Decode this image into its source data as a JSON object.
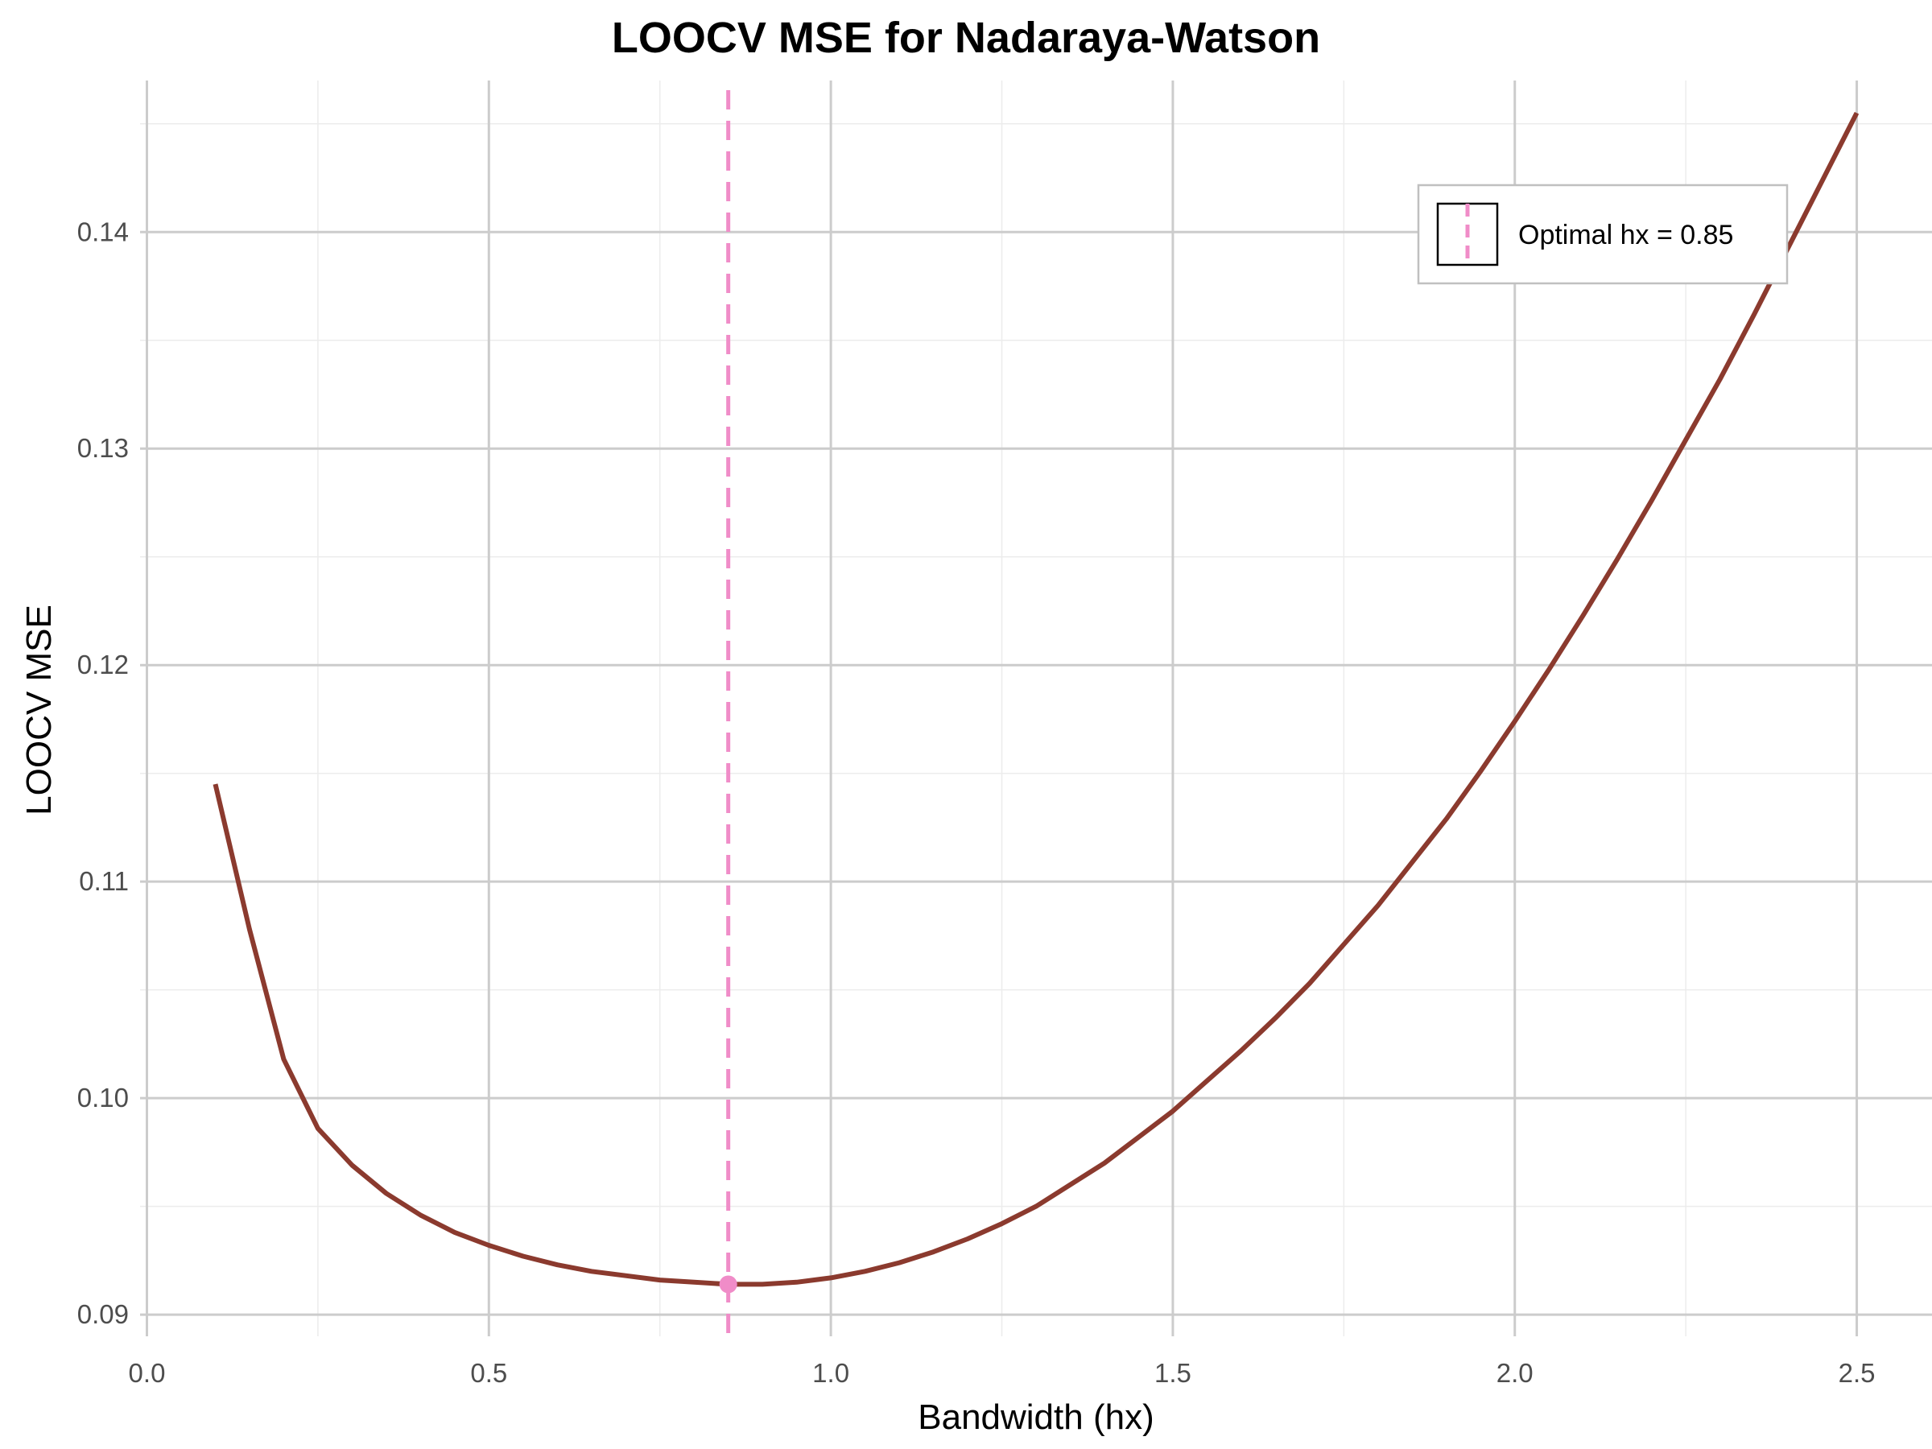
{
  "chart_data": {
    "type": "line",
    "title": "LOOCV MSE for Nadaraya-Watson",
    "xlabel": "Bandwidth (hx)",
    "ylabel": "LOOCV MSE",
    "xlim": [
      -0.01,
      2.61
    ],
    "ylim": [
      0.089,
      0.147
    ],
    "x_ticks": [
      0.0,
      0.5,
      1.0,
      1.5,
      2.0,
      2.5
    ],
    "x_tick_labels": [
      "0.0",
      "0.5",
      "1.0",
      "1.5",
      "2.0",
      "2.5"
    ],
    "y_ticks": [
      0.09,
      0.1,
      0.11,
      0.12,
      0.13,
      0.14
    ],
    "y_tick_labels": [
      "0.09",
      "0.10",
      "0.11",
      "0.12",
      "0.13",
      "0.14"
    ],
    "grid": true,
    "legend_position": "top-right",
    "series": [
      {
        "color": "#8b3a2e",
        "x": [
          0.1,
          0.15,
          0.2,
          0.25,
          0.3,
          0.35,
          0.4,
          0.45,
          0.5,
          0.55,
          0.6,
          0.65,
          0.7,
          0.75,
          0.8,
          0.85,
          0.9,
          0.95,
          1.0,
          1.05,
          1.1,
          1.15,
          1.2,
          1.25,
          1.3,
          1.35,
          1.4,
          1.45,
          1.5,
          1.55,
          1.6,
          1.65,
          1.7,
          1.75,
          1.8,
          1.85,
          1.9,
          1.95,
          2.0,
          2.05,
          2.1,
          2.15,
          2.2,
          2.25,
          2.3,
          2.35,
          2.4,
          2.45,
          2.5
        ],
        "y": [
          0.1145,
          0.1078,
          0.1018,
          0.0986,
          0.0969,
          0.0956,
          0.0946,
          0.0938,
          0.0932,
          0.0927,
          0.0923,
          0.092,
          0.0918,
          0.0916,
          0.0915,
          0.0914,
          0.0914,
          0.0915,
          0.0917,
          0.092,
          0.0924,
          0.0929,
          0.0935,
          0.0942,
          0.095,
          0.096,
          0.097,
          0.0982,
          0.0994,
          0.1008,
          0.1022,
          0.1037,
          0.1053,
          0.1071,
          0.1089,
          0.1109,
          0.1129,
          0.1151,
          0.1174,
          0.1198,
          0.1223,
          0.1249,
          0.1276,
          0.1304,
          0.1332,
          0.1362,
          0.1393,
          0.1424,
          0.1455
        ]
      }
    ],
    "optimal": {
      "label": "Optimal hx = 0.85",
      "x": 0.85,
      "y": 0.0914,
      "color": "#f08cc8"
    }
  }
}
